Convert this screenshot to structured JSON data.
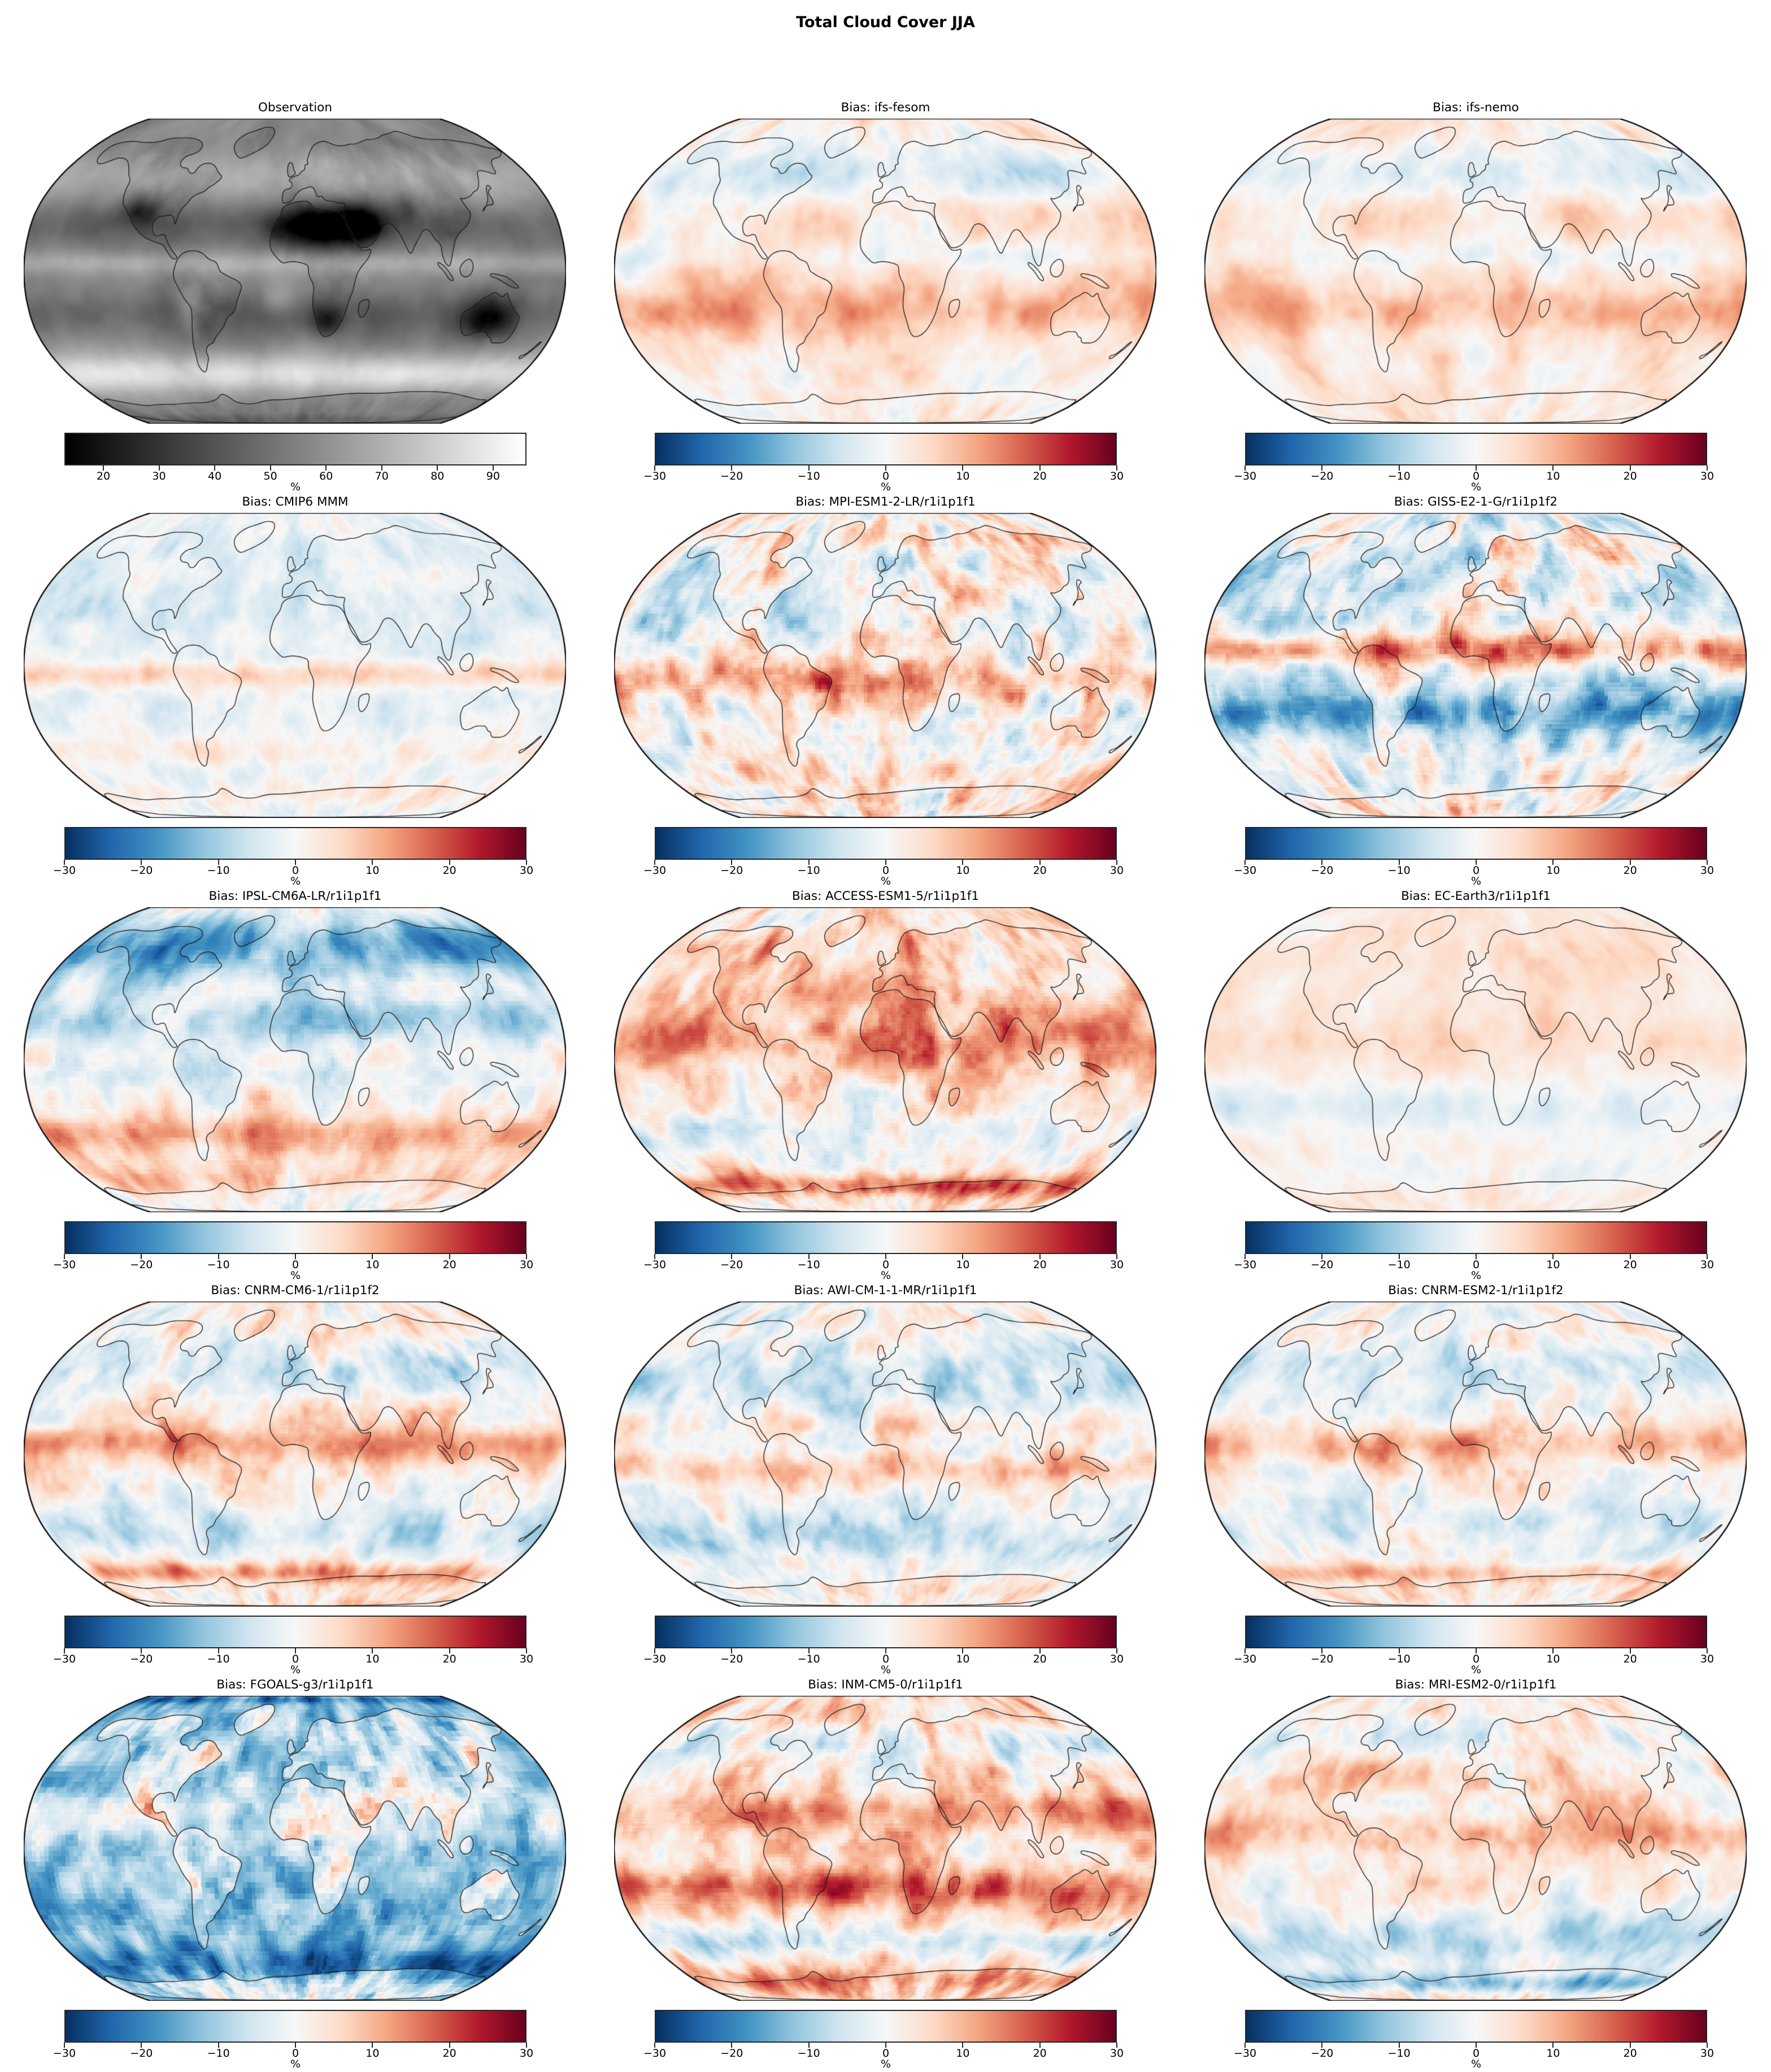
{
  "figure": {
    "title": "Total Cloud Cover JJA",
    "background": "#ffffff"
  },
  "colormaps": {
    "rdbu_r": [
      "#053061",
      "#2166ac",
      "#4393c3",
      "#92c5de",
      "#d1e5f0",
      "#f7f7f7",
      "#fddbc7",
      "#f4a582",
      "#d6604d",
      "#b2182b",
      "#67001f"
    ],
    "grays": [
      "#000000",
      "#ffffff"
    ]
  },
  "chart_data": {
    "type": "heatmap",
    "title": "Total Cloud Cover JJA",
    "projection": "Robinson world maps with coastlines",
    "grid": {
      "rows": 5,
      "cols": 3
    },
    "units": "%",
    "panels": [
      {
        "title": "Observation",
        "kind": "observation",
        "colormap": "grays",
        "vmin": 13,
        "vmax": 96,
        "ticks": [
          20,
          30,
          40,
          50,
          60,
          70,
          80,
          90
        ],
        "tick_labels": [
          "20",
          "30",
          "40",
          "50",
          "60",
          "70",
          "80",
          "90"
        ],
        "cbar_label": "%",
        "pattern": "total cloud cover %: dark (low cloud) over Sahara, Arabia, southern Africa, Australia, SW North America; bright over Southern Ocean, storm tracks and ITCZ",
        "render": {
          "seed": 7,
          "base": 57,
          "noise": [
            8,
            28
          ],
          "grain": 0.4,
          "land": -4,
          "bands": [
            [
              -55,
              11,
              28
            ],
            [
              50,
              14,
              12
            ],
            [
              4,
              6,
              12
            ],
            [
              -23,
              12,
              -13
            ],
            [
              25,
              13,
              -12
            ],
            [
              -85,
              5,
              -10
            ]
          ],
          "blobs": [
            [
              18,
              23,
              24,
              8,
              -42
            ],
            [
              44,
              26,
              12,
              7,
              -28
            ],
            [
              133,
              -25,
              12,
              8,
              -30
            ],
            [
              21,
              -26,
              8,
              6,
              -22
            ],
            [
              -108,
              32,
              10,
              6,
              -20
            ],
            [
              78,
              32,
              8,
              5,
              -12
            ],
            [
              -70,
              -20,
              6,
              8,
              14
            ],
            [
              -10,
              -15,
              8,
              6,
              12
            ],
            [
              90,
              -55,
              30,
              6,
              6
            ]
          ]
        }
      },
      {
        "title": "Bias: ifs-fesom",
        "kind": "bias",
        "colormap": "rdbu_r",
        "vmin": -30,
        "vmax": 30,
        "ticks": [
          -30,
          -20,
          -10,
          0,
          10,
          20,
          30
        ],
        "tick_labels": [
          "−30",
          "−20",
          "−10",
          "0",
          "10",
          "20",
          "30"
        ],
        "cbar_label": "%",
        "pattern": "weak warm (positive) bias over subtropical oceans, weak negative bias over northern Eurasia and N Pacific",
        "render": {
          "seed": 11,
          "base": 0.1,
          "noise": [
            0.3,
            26
          ],
          "grain": 0.4,
          "land": -0.1,
          "bands": [
            [
              -20,
              14,
              0.26
            ],
            [
              30,
              12,
              0.1
            ],
            [
              52,
              16,
              -0.26
            ],
            [
              8,
              6,
              -0.1
            ],
            [
              -60,
              8,
              -0.05
            ]
          ]
        }
      },
      {
        "title": "Bias: ifs-nemo",
        "kind": "bias",
        "colormap": "rdbu_r",
        "vmin": -30,
        "vmax": 30,
        "ticks": [
          -30,
          -20,
          -10,
          0,
          10,
          20,
          30
        ],
        "tick_labels": [
          "−30",
          "−20",
          "−10",
          "0",
          "10",
          "20",
          "30"
        ],
        "cbar_label": "%",
        "pattern": "similar to ifs-fesom: pale positive subtropics, pale negative high northern latitudes",
        "render": {
          "seed": 23,
          "base": 0.12,
          "noise": [
            0.28,
            26
          ],
          "grain": 0.4,
          "land": -0.08,
          "bands": [
            [
              -20,
              14,
              0.24
            ],
            [
              30,
              12,
              0.1
            ],
            [
              52,
              16,
              -0.22
            ],
            [
              8,
              6,
              -0.08
            ]
          ]
        }
      },
      {
        "title": "Bias: CMIP6 MMM",
        "kind": "bias",
        "colormap": "rdbu_r",
        "vmin": -30,
        "vmax": 30,
        "ticks": [
          -30,
          -20,
          -10,
          0,
          10,
          20,
          30
        ],
        "tick_labels": [
          "−30",
          "−20",
          "−10",
          "0",
          "10",
          "20",
          "30"
        ],
        "cbar_label": "%",
        "pattern": "muted multi-model mean: light blue overall with narrow red equatorial band and red southern mid-latitude stripes",
        "render": {
          "seed": 31,
          "base": -0.06,
          "noise": [
            0.22,
            16
          ],
          "grain": 1.0,
          "land": 0.1,
          "bands": [
            [
              -5,
              7,
              0.3
            ],
            [
              -45,
              8,
              0.1
            ],
            [
              30,
              18,
              -0.1
            ],
            [
              60,
              12,
              -0.08
            ],
            [
              -70,
              8,
              0.12
            ]
          ]
        }
      },
      {
        "title": "Bias: MPI-ESM1-2-LR/r1i1p1f1",
        "kind": "bias",
        "colormap": "rdbu_r",
        "vmin": -30,
        "vmax": 30,
        "ticks": [
          -30,
          -20,
          -10,
          0,
          10,
          20,
          30
        ],
        "tick_labels": [
          "−30",
          "−20",
          "−10",
          "0",
          "10",
          "20",
          "30"
        ],
        "cbar_label": "%",
        "pattern": "patchy strong biases: red along tropical land/west coasts, blue mid-latitude oceans",
        "render": {
          "seed": 41,
          "base": 0.02,
          "noise": [
            0.55,
            18
          ],
          "grain": 1.9,
          "land": 0.3,
          "bands": [
            [
              -8,
              9,
              0.3
            ],
            [
              25,
              12,
              -0.15
            ],
            [
              55,
              12,
              -0.1
            ],
            [
              -60,
              8,
              0.15
            ]
          ]
        }
      },
      {
        "title": "Bias: GISS-E2-1-G/r1i1p1f2",
        "kind": "bias",
        "colormap": "rdbu_r",
        "vmin": -30,
        "vmax": 30,
        "ticks": [
          -30,
          -20,
          -10,
          0,
          10,
          20,
          30
        ],
        "tick_labels": [
          "−30",
          "−20",
          "−10",
          "0",
          "10",
          "20",
          "30"
        ],
        "cbar_label": "%",
        "pattern": "very strong contrast: dark red northern-tropics band, deep blue 15–35S and SE Asia",
        "render": {
          "seed": 53,
          "base": -0.1,
          "noise": [
            0.55,
            20
          ],
          "grain": 2.5,
          "land": 0.35,
          "bands": [
            [
              8,
              9,
              0.55
            ],
            [
              -25,
              12,
              -0.5
            ],
            [
              45,
              15,
              -0.15
            ],
            [
              -55,
              10,
              0.1
            ],
            [
              70,
              8,
              0.1
            ]
          ]
        }
      },
      {
        "title": "Bias: IPSL-CM6A-LR/r1i1p1f1",
        "kind": "bias",
        "colormap": "rdbu_r",
        "vmin": -30,
        "vmax": 30,
        "ticks": [
          -30,
          -20,
          -10,
          0,
          10,
          20,
          30
        ],
        "tick_labels": [
          "−30",
          "−20",
          "−10",
          "0",
          "10",
          "20",
          "30"
        ],
        "cbar_label": "%",
        "pattern": "strong negative bias over NH continents and Arctic, red band over southern mid-latitudes",
        "render": {
          "seed": 61,
          "base": 0.06,
          "noise": [
            0.38,
            22
          ],
          "grain": 2.5,
          "land": -0.18,
          "bands": [
            [
              60,
              20,
              -0.55
            ],
            [
              -40,
              12,
              0.35
            ],
            [
              20,
              12,
              -0.28
            ],
            [
              -8,
              7,
              -0.12
            ],
            [
              -65,
              8,
              0.15
            ]
          ]
        }
      },
      {
        "title": "Bias: ACCESS-ESM1-5/r1i1p1f1",
        "kind": "bias",
        "colormap": "rdbu_r",
        "vmin": -30,
        "vmax": 30,
        "ticks": [
          -30,
          -20,
          -10,
          0,
          10,
          20,
          30
        ],
        "tick_labels": [
          "−30",
          "−20",
          "−10",
          "0",
          "10",
          "20",
          "30"
        ],
        "cbar_label": "%",
        "pattern": "red-dominant over tropics and land, dark red Antarctic coastal ring, blue SH subtropical oceans",
        "render": {
          "seed": 71,
          "base": 0.12,
          "noise": [
            0.45,
            20
          ],
          "grain": 1.9,
          "land": 0.32,
          "bands": [
            [
              10,
              14,
              0.3
            ],
            [
              -40,
              12,
              -0.25
            ],
            [
              -68,
              7,
              0.45
            ],
            [
              35,
              10,
              0.12
            ]
          ]
        }
      },
      {
        "title": "Bias: EC-Earth3/r1i1p1f1",
        "kind": "bias",
        "colormap": "rdbu_r",
        "vmin": -30,
        "vmax": 30,
        "ticks": [
          -30,
          -20,
          -10,
          0,
          10,
          20,
          30
        ],
        "tick_labels": [
          "−30",
          "−20",
          "−10",
          "0",
          "10",
          "20",
          "30"
        ],
        "cbar_label": "%",
        "pattern": "weak overall: pale red NH, pale blue 15–35S",
        "render": {
          "seed": 83,
          "base": 0.1,
          "noise": [
            0.2,
            24
          ],
          "grain": 0.7,
          "land": 0.06,
          "bands": [
            [
              -25,
              13,
              -0.22
            ],
            [
              10,
              10,
              0.06
            ],
            [
              60,
              12,
              0.04
            ],
            [
              -60,
              10,
              -0.08
            ]
          ]
        }
      },
      {
        "title": "Bias: CNRM-CM6-1/r1i1p1f2",
        "kind": "bias",
        "colormap": "rdbu_r",
        "vmin": -30,
        "vmax": 30,
        "ticks": [
          -30,
          -20,
          -10,
          0,
          10,
          20,
          30
        ],
        "tick_labels": [
          "−30",
          "−20",
          "−10",
          "0",
          "10",
          "20",
          "30"
        ],
        "cbar_label": "%",
        "pattern": "strong red over Sahara/tropics, blue northern oceans, red ring along Antarctic coast",
        "render": {
          "seed": 97,
          "base": 0.02,
          "noise": [
            0.38,
            20
          ],
          "grain": 1.4,
          "land": 0.3,
          "bands": [
            [
              5,
              10,
              0.35
            ],
            [
              45,
              16,
              -0.28
            ],
            [
              -35,
              12,
              -0.16
            ],
            [
              -64,
              6,
              0.4
            ],
            [
              -45,
              8,
              -0.1
            ]
          ]
        }
      },
      {
        "title": "Bias: AWI-CM-1-1-MR/r1i1p1f1",
        "kind": "bias",
        "colormap": "rdbu_r",
        "vmin": -30,
        "vmax": 30,
        "ticks": [
          -30,
          -20,
          -10,
          0,
          10,
          20,
          30
        ],
        "tick_labels": [
          "−30",
          "−20",
          "−10",
          "0",
          "10",
          "20",
          "30"
        ],
        "cbar_label": "%",
        "pattern": "blue mid-latitude oceans with red equatorial Atlantic/Africa patches",
        "render": {
          "seed": 103,
          "base": -0.02,
          "noise": [
            0.4,
            19
          ],
          "grain": 0.9,
          "land": 0.12,
          "bands": [
            [
              -8,
              8,
              0.3
            ],
            [
              38,
              16,
              -0.24
            ],
            [
              -45,
              12,
              -0.18
            ],
            [
              15,
              8,
              0.1
            ]
          ]
        }
      },
      {
        "title": "Bias: CNRM-ESM2-1/r1i1p1f2",
        "kind": "bias",
        "colormap": "rdbu_r",
        "vmin": -30,
        "vmax": 30,
        "ticks": [
          -30,
          -20,
          -10,
          0,
          10,
          20,
          30
        ],
        "tick_labels": [
          "−30",
          "−20",
          "−10",
          "0",
          "10",
          "20",
          "30"
        ],
        "cbar_label": "%",
        "pattern": "like CNRM-CM6-1 but slightly weaker: red tropics/Sahara, blue N oceans, red Antarctic ring",
        "render": {
          "seed": 113,
          "base": 0.02,
          "noise": [
            0.35,
            20
          ],
          "grain": 1.4,
          "land": 0.26,
          "bands": [
            [
              5,
              10,
              0.32
            ],
            [
              45,
              16,
              -0.26
            ],
            [
              -35,
              12,
              -0.15
            ],
            [
              -64,
              6,
              0.34
            ]
          ]
        }
      },
      {
        "title": "Bias: FGOALS-g3/r1i1p1f1",
        "kind": "bias",
        "colormap": "rdbu_r",
        "vmin": -30,
        "vmax": 30,
        "ticks": [
          -30,
          -20,
          -10,
          0,
          10,
          20,
          30
        ],
        "tick_labels": [
          "−30",
          "−20",
          "−10",
          "0",
          "10",
          "20",
          "30"
        ],
        "cbar_label": "%",
        "pattern": "strong negative (deep blue) bias nearly everywhere with dark red patches over land (Sahara, Andes, western N America)",
        "render": {
          "seed": 127,
          "base": -0.42,
          "noise": [
            0.5,
            17
          ],
          "grain": 2.8,
          "land": 0.65,
          "bands": [
            [
              22,
              12,
              0.25
            ],
            [
              -62,
              10,
              -0.3
            ],
            [
              8,
              6,
              0.1
            ],
            [
              85,
              4,
              -0.3
            ]
          ]
        }
      },
      {
        "title": "Bias: INM-CM5-0/r1i1p1f1",
        "kind": "bias",
        "colormap": "rdbu_r",
        "vmin": -30,
        "vmax": 30,
        "ticks": [
          -30,
          -20,
          -10,
          0,
          10,
          20,
          30
        ],
        "tick_labels": [
          "−30",
          "−20",
          "−10",
          "0",
          "10",
          "20",
          "30"
        ],
        "cbar_label": "%",
        "pattern": "red-dominant with strong red subtropical bands in both hemispheres, blue patches in deep tropics and 45–60S",
        "render": {
          "seed": 131,
          "base": 0.15,
          "noise": [
            0.48,
            19
          ],
          "grain": 2.0,
          "land": 0.18,
          "bands": [
            [
              -22,
              10,
              0.4
            ],
            [
              18,
              10,
              0.3
            ],
            [
              55,
              12,
              -0.28
            ],
            [
              -50,
              9,
              -0.32
            ],
            [
              -72,
              7,
              0.25
            ]
          ]
        }
      },
      {
        "title": "Bias: MRI-ESM2-0/r1i1p1f1",
        "kind": "bias",
        "colormap": "rdbu_r",
        "vmin": -30,
        "vmax": 30,
        "ticks": [
          -30,
          -20,
          -10,
          0,
          10,
          20,
          30
        ],
        "tick_labels": [
          "−30",
          "−20",
          "−10",
          "0",
          "10",
          "20",
          "30"
        ],
        "cbar_label": "%",
        "pattern": "moderate: red tropics and land, blue 40–60S and deep blue around Antarctica",
        "render": {
          "seed": 139,
          "base": 0.04,
          "noise": [
            0.36,
            20
          ],
          "grain": 1.1,
          "land": 0.22,
          "bands": [
            [
              8,
              11,
              0.26
            ],
            [
              -48,
              14,
              -0.3
            ],
            [
              -74,
              7,
              -0.5
            ],
            [
              35,
              10,
              0.1
            ],
            [
              60,
              10,
              -0.1
            ]
          ]
        }
      }
    ]
  }
}
